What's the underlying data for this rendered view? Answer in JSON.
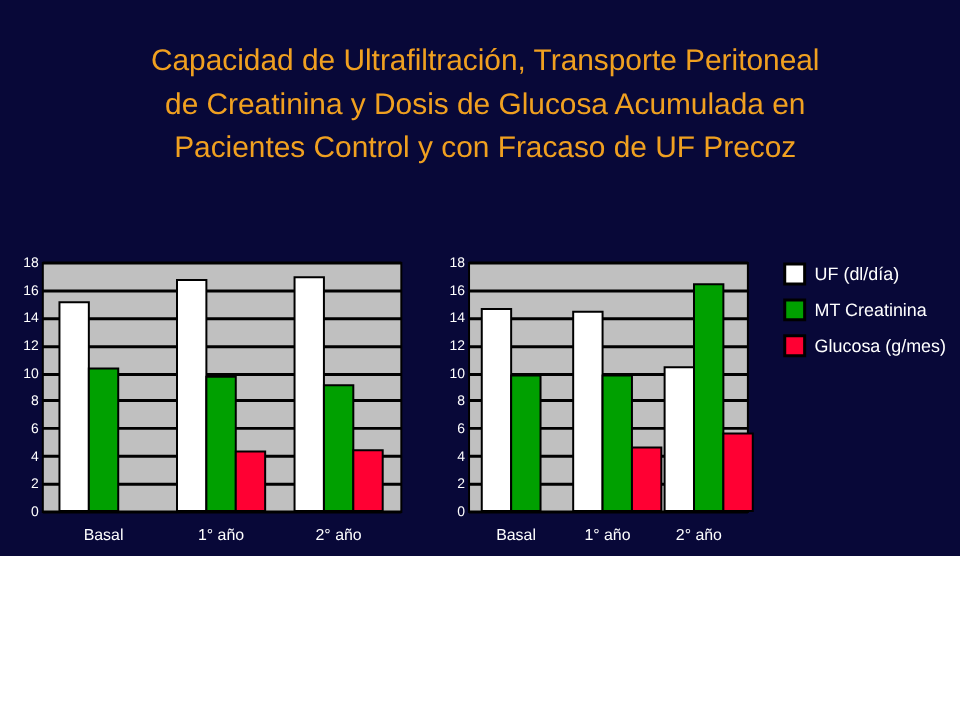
{
  "chart_data": [
    {
      "type": "bar",
      "title": "Capacidad de Ultrafiltración, Transporte Peritoneal\nde Creatinina y Dosis de Glucosa Acumulada  en\nPacientes Control y con Fracaso de UF Precoz",
      "categories": [
        "Basal",
        "1° año",
        "2° año"
      ],
      "ylim": [
        0,
        18
      ],
      "yticks": [
        0,
        2,
        4,
        6,
        8,
        10,
        12,
        14,
        16,
        18
      ],
      "grid": "y",
      "legend": false,
      "series": [
        {
          "color": "#ffffff",
          "values": [
            15.1,
            16.7,
            16.9
          ]
        },
        {
          "color": "#00a000",
          "values": [
            10.3,
            9.7,
            9.1
          ]
        },
        {
          "color": "#ff0033",
          "values": [
            null,
            4.3,
            4.4
          ]
        }
      ]
    },
    {
      "type": "bar",
      "categories": [
        "Basal",
        "1° año",
        "2° año"
      ],
      "ylim": [
        0,
        18
      ],
      "yticks": [
        0,
        2,
        4,
        6,
        8,
        10,
        12,
        14,
        16,
        18
      ],
      "grid": "y",
      "legend": "right",
      "series": [
        {
          "name": "UF (dl/día)",
          "color": "#ffffff",
          "values": [
            14.6,
            14.4,
            10.4
          ]
        },
        {
          "name": "MT Creatinina",
          "color": "#00a000",
          "values": [
            9.8,
            9.8,
            16.4
          ]
        },
        {
          "name": "Glucosa (g/mes)",
          "color": "#ff0033",
          "values": [
            null,
            4.6,
            5.6
          ]
        }
      ]
    }
  ]
}
